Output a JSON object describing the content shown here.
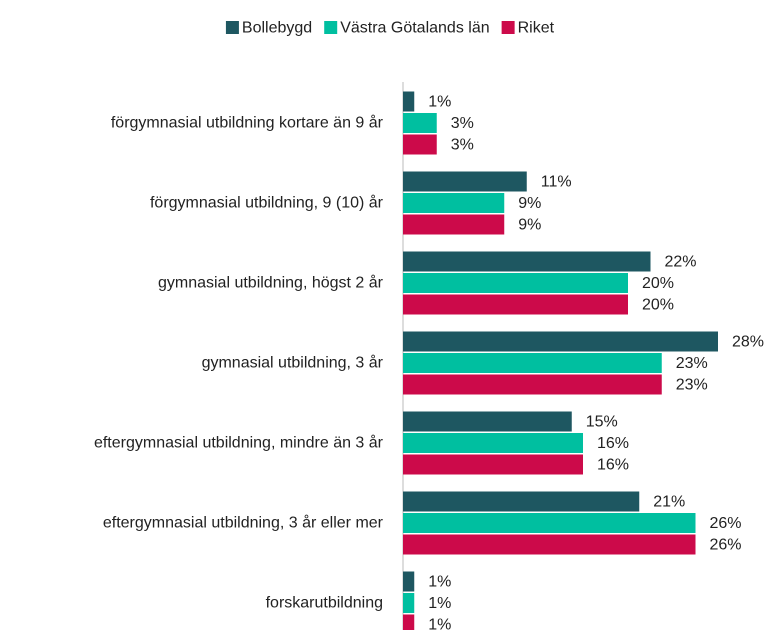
{
  "chart_data": {
    "type": "bar",
    "orientation": "horizontal",
    "categories": [
      "förgymnasial utbildning kortare än 9 år",
      "förgymnasial utbildning, 9 (10) år",
      "gymnasial utbildning, högst 2 år",
      "gymnasial utbildning, 3 år",
      "eftergymnasial utbildning, mindre än 3 år",
      "eftergymnasial utbildning, 3 år eller mer",
      "forskarutbildning"
    ],
    "series": [
      {
        "name": "Bollebygd",
        "color": "#1e5761",
        "values": [
          1,
          11,
          22,
          28,
          15,
          21,
          1
        ],
        "value_labels": [
          "1%",
          "11%",
          "22%",
          "28%",
          "15%",
          "21%",
          "1%"
        ]
      },
      {
        "name": "Västra Götalands län",
        "color": "#00bfa0",
        "values": [
          3,
          9,
          20,
          23,
          16,
          26,
          1
        ],
        "value_labels": [
          "3%",
          "9%",
          "20%",
          "23%",
          "16%",
          "26%",
          "1%"
        ]
      },
      {
        "name": "Riket",
        "color": "#cc0a4a",
        "values": [
          3,
          9,
          20,
          23,
          16,
          26,
          1
        ],
        "value_labels": [
          "3%",
          "9%",
          "20%",
          "23%",
          "16%",
          "26%",
          "1%"
        ]
      }
    ],
    "legend": "top"
  }
}
